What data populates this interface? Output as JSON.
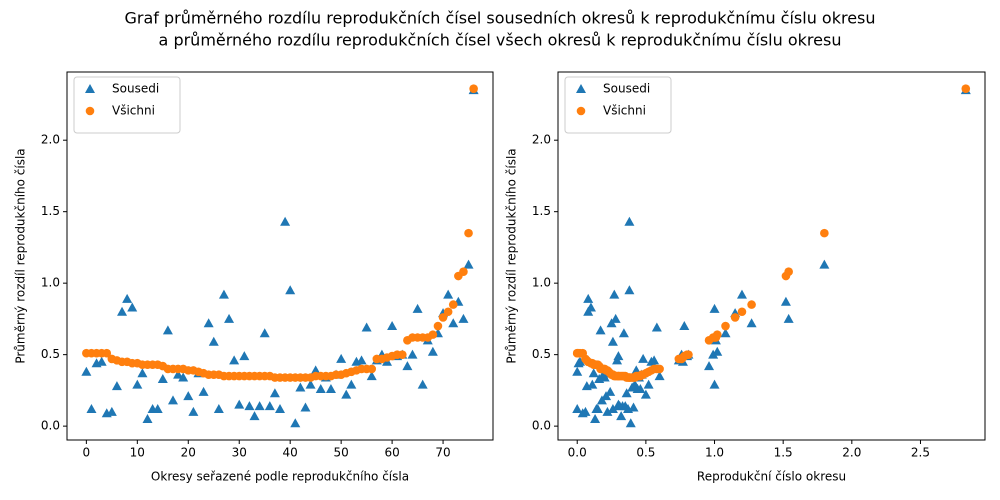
{
  "title": [
    "Graf průměrného rozdílu reprodukčních čísel sousedních okresů k reprodukčnímu číslu okresu",
    "a průměrného rozdílu reprodukčních čísel všech okresů k reprodukčnímu číslu okresu"
  ],
  "chart_data": [
    {
      "type": "scatter",
      "xlabel": "Okresy seřazené podle reprodukčního čísla",
      "ylabel": "Průměrný rozdíl reprodukčního čísla",
      "x": [
        0,
        1,
        2,
        3,
        4,
        5,
        6,
        7,
        8,
        9,
        10,
        11,
        12,
        13,
        14,
        15,
        16,
        17,
        18,
        19,
        20,
        21,
        22,
        23,
        24,
        25,
        26,
        27,
        28,
        29,
        30,
        31,
        32,
        33,
        34,
        35,
        36,
        37,
        38,
        39,
        40,
        41,
        42,
        43,
        44,
        45,
        46,
        47,
        48,
        49,
        50,
        51,
        52,
        53,
        54,
        55,
        56,
        57,
        58,
        59,
        60,
        61,
        62,
        63,
        64,
        65,
        66,
        67,
        68,
        69,
        70,
        71,
        72,
        73,
        74,
        75,
        76
      ],
      "series": [
        {
          "name": "Sousedi",
          "color": "#1f77b4",
          "marker": "triangle",
          "values": [
            0.38,
            0.12,
            0.44,
            0.45,
            0.09,
            0.1,
            0.28,
            0.8,
            0.89,
            0.83,
            0.29,
            0.37,
            0.05,
            0.12,
            0.12,
            0.33,
            0.67,
            0.18,
            0.36,
            0.34,
            0.21,
            0.1,
            0.37,
            0.24,
            0.72,
            0.59,
            0.12,
            0.92,
            0.75,
            0.46,
            0.15,
            0.49,
            0.14,
            0.07,
            0.14,
            0.65,
            0.14,
            0.23,
            0.12,
            1.43,
            0.95,
            0.02,
            0.27,
            0.13,
            0.29,
            0.39,
            0.26,
            0.34,
            0.26,
            0.36,
            0.47,
            0.22,
            0.29,
            0.45,
            0.46,
            0.69,
            0.35,
            0.46,
            0.5,
            0.45,
            0.7,
            0.49,
            0.5,
            0.42,
            0.5,
            0.82,
            0.29,
            0.6,
            0.52,
            0.65,
            0.79,
            0.92,
            0.72,
            0.87,
            0.75,
            1.13,
            2.35
          ]
        },
        {
          "name": "Všichni",
          "color": "#ff7f0e",
          "marker": "circle",
          "values": [
            0.51,
            0.51,
            0.51,
            0.51,
            0.51,
            0.47,
            0.46,
            0.45,
            0.45,
            0.44,
            0.44,
            0.43,
            0.43,
            0.43,
            0.43,
            0.42,
            0.4,
            0.4,
            0.4,
            0.4,
            0.39,
            0.39,
            0.38,
            0.37,
            0.36,
            0.36,
            0.36,
            0.35,
            0.35,
            0.35,
            0.35,
            0.35,
            0.35,
            0.35,
            0.35,
            0.35,
            0.35,
            0.34,
            0.34,
            0.34,
            0.34,
            0.34,
            0.34,
            0.34,
            0.34,
            0.35,
            0.35,
            0.35,
            0.35,
            0.36,
            0.36,
            0.37,
            0.38,
            0.39,
            0.4,
            0.4,
            0.4,
            0.47,
            0.47,
            0.48,
            0.49,
            0.5,
            0.5,
            0.6,
            0.62,
            0.62,
            0.62,
            0.62,
            0.64,
            0.7,
            0.76,
            0.8,
            0.85,
            1.05,
            1.08,
            1.35,
            2.36
          ]
        }
      ],
      "xlim": [
        -3.8,
        79.8
      ],
      "xticks": [
        0,
        10,
        20,
        30,
        40,
        50,
        60,
        70
      ],
      "ylim": [
        -0.097,
        2.477
      ],
      "yticks": [
        {
          "value": 0,
          "label": "0.0"
        },
        0.5,
        {
          "value": 1,
          "label": "1.0"
        },
        1.5,
        {
          "value": 2,
          "label": "2.0"
        }
      ],
      "legend": "upper left"
    },
    {
      "type": "scatter",
      "xlabel": "Reprodukční číslo okresu",
      "ylabel": "Průměrný rozdíl reprodukčního čísla",
      "x": [
        0.0,
        0.0,
        0.01,
        0.02,
        0.04,
        0.06,
        0.07,
        0.08,
        0.08,
        0.1,
        0.11,
        0.12,
        0.13,
        0.14,
        0.15,
        0.16,
        0.17,
        0.18,
        0.19,
        0.2,
        0.21,
        0.22,
        0.23,
        0.24,
        0.25,
        0.26,
        0.26,
        0.27,
        0.28,
        0.29,
        0.3,
        0.3,
        0.31,
        0.32,
        0.33,
        0.34,
        0.35,
        0.36,
        0.37,
        0.38,
        0.38,
        0.39,
        0.4,
        0.41,
        0.42,
        0.43,
        0.44,
        0.45,
        0.46,
        0.47,
        0.48,
        0.5,
        0.52,
        0.54,
        0.56,
        0.58,
        0.6,
        0.74,
        0.76,
        0.77,
        0.78,
        0.8,
        0.81,
        0.96,
        0.99,
        1.0,
        1.0,
        1.01,
        1.02,
        1.08,
        1.15,
        1.2,
        1.27,
        1.52,
        1.54,
        1.8,
        2.83
      ],
      "series": [
        {
          "name": "Sousedi",
          "color": "#1f77b4",
          "marker": "triangle",
          "values": [
            0.38,
            0.12,
            0.44,
            0.45,
            0.09,
            0.1,
            0.28,
            0.8,
            0.89,
            0.83,
            0.29,
            0.37,
            0.05,
            0.12,
            0.12,
            0.33,
            0.67,
            0.18,
            0.36,
            0.34,
            0.21,
            0.1,
            0.37,
            0.24,
            0.72,
            0.59,
            0.12,
            0.92,
            0.75,
            0.46,
            0.15,
            0.49,
            0.14,
            0.07,
            0.14,
            0.65,
            0.14,
            0.23,
            0.12,
            1.43,
            0.95,
            0.02,
            0.27,
            0.13,
            0.29,
            0.39,
            0.26,
            0.34,
            0.26,
            0.36,
            0.47,
            0.22,
            0.29,
            0.45,
            0.46,
            0.69,
            0.35,
            0.46,
            0.5,
            0.45,
            0.7,
            0.49,
            0.5,
            0.42,
            0.5,
            0.82,
            0.29,
            0.6,
            0.52,
            0.65,
            0.79,
            0.92,
            0.72,
            0.87,
            0.75,
            1.13,
            2.35
          ]
        },
        {
          "name": "Všichni",
          "color": "#ff7f0e",
          "marker": "circle",
          "values": [
            0.51,
            0.51,
            0.51,
            0.51,
            0.51,
            0.47,
            0.46,
            0.45,
            0.45,
            0.44,
            0.44,
            0.43,
            0.43,
            0.43,
            0.43,
            0.42,
            0.4,
            0.4,
            0.4,
            0.4,
            0.39,
            0.39,
            0.38,
            0.37,
            0.36,
            0.36,
            0.36,
            0.35,
            0.35,
            0.35,
            0.35,
            0.35,
            0.35,
            0.35,
            0.35,
            0.35,
            0.35,
            0.34,
            0.34,
            0.34,
            0.34,
            0.34,
            0.34,
            0.34,
            0.34,
            0.35,
            0.35,
            0.35,
            0.35,
            0.36,
            0.36,
            0.37,
            0.38,
            0.39,
            0.4,
            0.4,
            0.4,
            0.47,
            0.47,
            0.48,
            0.49,
            0.5,
            0.5,
            0.6,
            0.62,
            0.62,
            0.62,
            0.62,
            0.64,
            0.7,
            0.76,
            0.8,
            0.85,
            1.05,
            1.08,
            1.35,
            2.36
          ]
        }
      ],
      "xlim": [
        -0.14,
        2.97
      ],
      "xticks": [
        {
          "value": 0,
          "label": "0.0"
        },
        0.5,
        {
          "value": 1,
          "label": "1.0"
        },
        1.5,
        {
          "value": 2,
          "label": "2.0"
        },
        2.5
      ],
      "ylim": [
        -0.097,
        2.477
      ],
      "yticks": [
        {
          "value": 0,
          "label": "0.0"
        },
        0.5,
        {
          "value": 1,
          "label": "1.0"
        },
        1.5,
        {
          "value": 2,
          "label": "2.0"
        }
      ],
      "legend": "upper left"
    }
  ]
}
